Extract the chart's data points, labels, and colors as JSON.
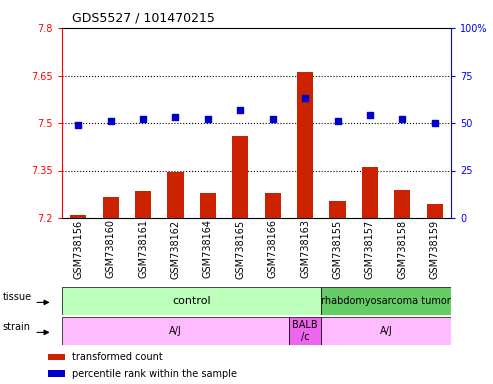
{
  "title": "GDS5527 / 101470215",
  "samples": [
    "GSM738156",
    "GSM738160",
    "GSM738161",
    "GSM738162",
    "GSM738164",
    "GSM738165",
    "GSM738166",
    "GSM738163",
    "GSM738155",
    "GSM738157",
    "GSM738158",
    "GSM738159"
  ],
  "bar_values": [
    7.21,
    7.265,
    7.285,
    7.345,
    7.28,
    7.46,
    7.28,
    7.66,
    7.255,
    7.36,
    7.29,
    7.245
  ],
  "scatter_values": [
    49,
    51,
    52,
    53,
    52,
    57,
    52,
    63,
    51,
    54,
    52,
    50
  ],
  "bar_color": "#cc2200",
  "scatter_color": "#0000cc",
  "left_ylim": [
    7.2,
    7.8
  ],
  "right_ylim": [
    0,
    100
  ],
  "left_yticks": [
    7.2,
    7.35,
    7.5,
    7.65,
    7.8
  ],
  "right_yticks": [
    0,
    25,
    50,
    75,
    100
  ],
  "right_yticklabels": [
    "0",
    "25",
    "50",
    "75",
    "100%"
  ],
  "hlines": [
    7.35,
    7.5,
    7.65
  ],
  "tissue_ranges": [
    [
      0,
      8,
      "control",
      "#bbffbb"
    ],
    [
      8,
      12,
      "rhabdomyosarcoma tumor",
      "#66cc66"
    ]
  ],
  "strain_ranges": [
    [
      0,
      7,
      "A/J",
      "#ffbbff"
    ],
    [
      7,
      8,
      "BALB\n/c",
      "#ee66ee"
    ],
    [
      8,
      12,
      "A/J",
      "#ffbbff"
    ]
  ],
  "n_samples": 12,
  "bar_width": 0.5,
  "title_fontsize": 9,
  "tick_fontsize": 7,
  "label_fontsize": 7,
  "annotation_fontsize": 7,
  "tissue_fontsize": 8,
  "rhabdo_fontsize": 7
}
